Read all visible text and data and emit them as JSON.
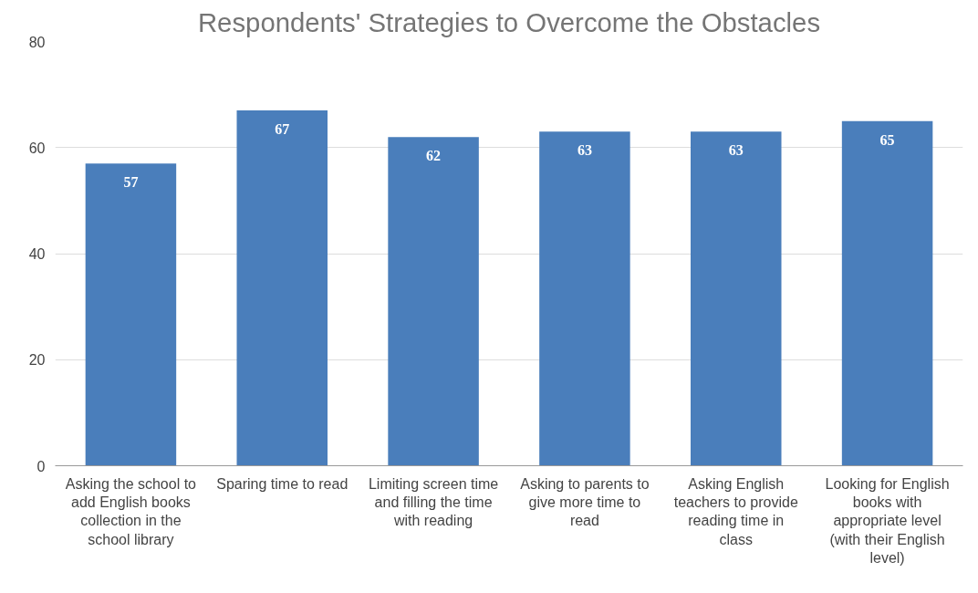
{
  "chart_data": {
    "type": "bar",
    "title": "Respondents' Strategies to Overcome the Obstacles",
    "categories": [
      "Asking the school to add English books collection in the school library",
      "Sparing time to read",
      "Limiting screen time and filling the time with reading",
      "Asking to parents to give more time to read",
      "Asking English teachers to provide reading time in class",
      "Looking for English books with appropriate level (with their English level)"
    ],
    "values": [
      57,
      67,
      62,
      63,
      63,
      65
    ],
    "color": "#4a7ebb",
    "ylim": [
      0,
      80
    ],
    "yticks": [
      0,
      20,
      40,
      60,
      80
    ],
    "grid": "y",
    "data_labels": true
  }
}
